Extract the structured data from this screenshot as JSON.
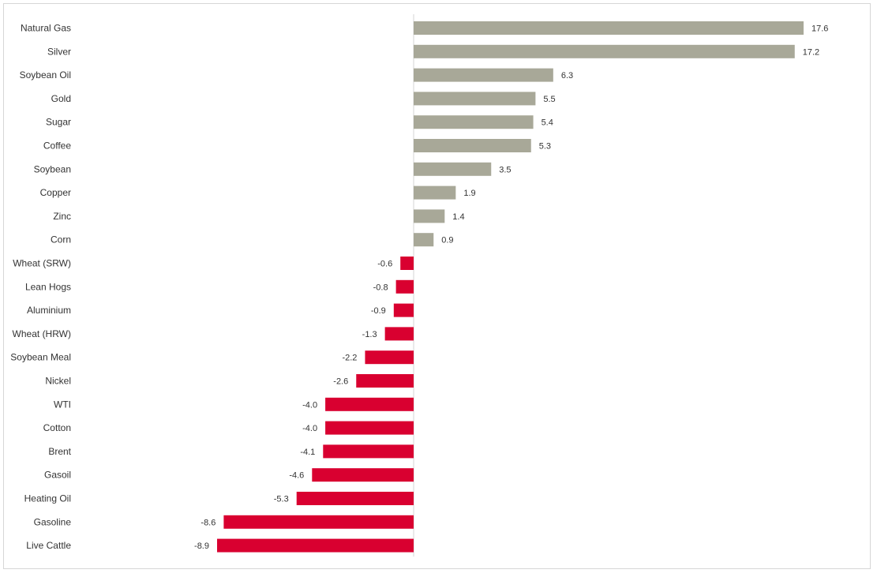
{
  "chart_data": {
    "type": "bar",
    "orientation": "horizontal",
    "categories": [
      "Natural Gas",
      "Silver",
      "Soybean Oil",
      "Gold",
      "Sugar",
      "Coffee",
      "Soybean",
      "Copper",
      "Zinc",
      "Corn",
      "Wheat (SRW)",
      "Lean Hogs",
      "Aluminium",
      "Wheat (HRW)",
      "Soybean Meal",
      "Nickel",
      "WTI",
      "Cotton",
      "Brent",
      "Gasoil",
      "Heating Oil",
      "Gasoline",
      "Live Cattle"
    ],
    "values": [
      17.6,
      17.2,
      6.3,
      5.5,
      5.4,
      5.3,
      3.5,
      1.9,
      1.4,
      0.9,
      -0.6,
      -0.8,
      -0.9,
      -1.3,
      -2.2,
      -2.6,
      -4.0,
      -4.0,
      -4.1,
      -4.6,
      -5.3,
      -8.6,
      -8.9
    ],
    "value_labels": [
      "17.6",
      "17.2",
      "6.3",
      "5.5",
      "5.4",
      "5.3",
      "3.5",
      "1.9",
      "1.4",
      "0.9",
      "-0.6",
      "-0.8",
      "-0.9",
      "-1.3",
      "-2.2",
      "-2.6",
      "-4.0",
      "-4.0",
      "-4.1",
      "-4.6",
      "-5.3",
      "-8.6",
      "-8.9"
    ],
    "xlim": [
      -8.9,
      17.6
    ],
    "grid": false,
    "legend": "none",
    "colors": {
      "positive": "#a8a898",
      "negative": "#d90030",
      "axis": "#d6d6d6",
      "text": "#333333"
    }
  }
}
